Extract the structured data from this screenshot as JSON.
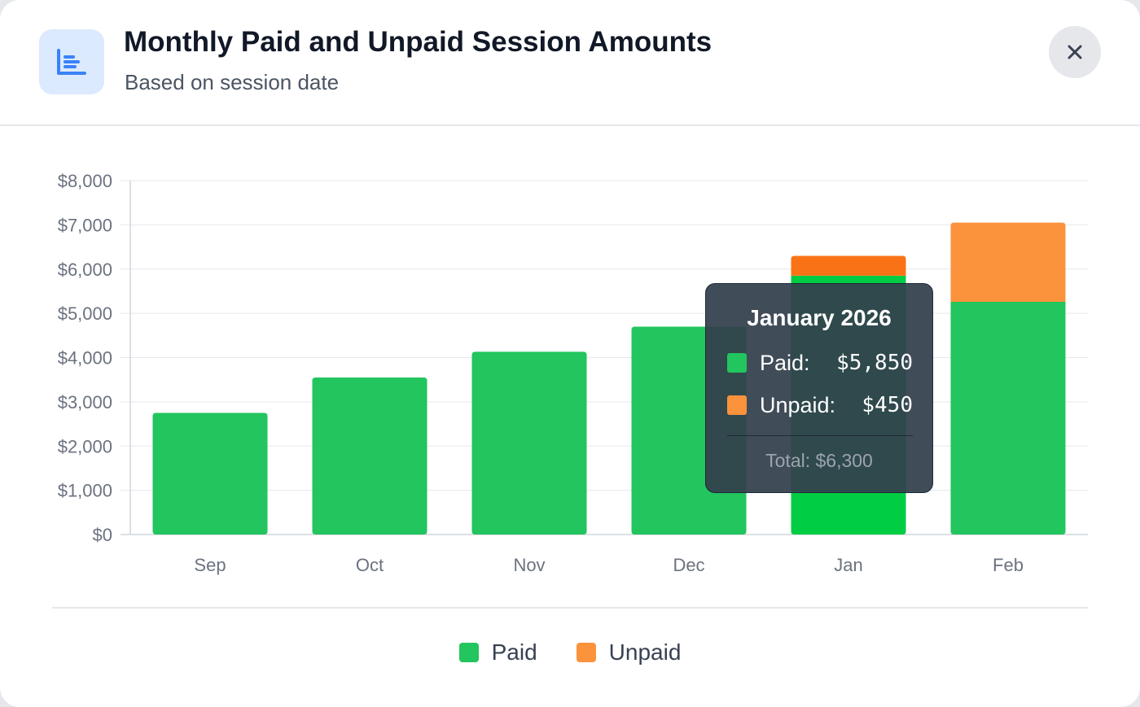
{
  "dialog": {
    "title": "Monthly Paid and Unpaid Session Amounts",
    "subtitle": "Based on session date",
    "icon": "bar-chart-icon",
    "close_icon": "close-icon"
  },
  "colors": {
    "paid": "#22c55e",
    "paid_highlight": "#00cc44",
    "unpaid": "#fb923c",
    "unpaid_highlight": "#f97316",
    "icon_accent": "#3b82f6",
    "grid": "#e5e7eb",
    "tick_text": "#6b7280"
  },
  "chart_data": {
    "type": "bar",
    "stacked": true,
    "categories": [
      "Sep",
      "Oct",
      "Nov",
      "Dec",
      "Jan",
      "Feb"
    ],
    "series": [
      {
        "name": "Paid",
        "values": [
          2750,
          3550,
          4130,
          4700,
          5850,
          5260
        ]
      },
      {
        "name": "Unpaid",
        "values": [
          0,
          0,
          0,
          0,
          450,
          1790
        ]
      }
    ],
    "y_ticks": [
      "$0",
      "$1,000",
      "$2,000",
      "$3,000",
      "$4,000",
      "$5,000",
      "$6,000",
      "$7,000",
      "$8,000"
    ],
    "ylim": [
      0,
      8000
    ],
    "grid": true,
    "legend": "bottom-center",
    "highlighted_category": "Jan"
  },
  "legend": {
    "paid_label": "Paid",
    "unpaid_label": "Unpaid"
  },
  "tooltip": {
    "title": "January 2026",
    "paid_label": "Paid:",
    "paid_value": "$5,850",
    "unpaid_label": "Unpaid:",
    "unpaid_value": "$450",
    "total": "Total: $6,300"
  }
}
